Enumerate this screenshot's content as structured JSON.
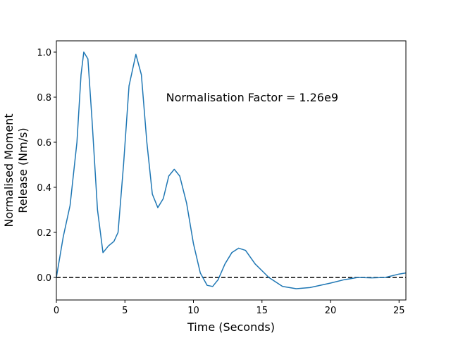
{
  "chart_data": {
    "type": "line",
    "xlabel": "Time (Seconds)",
    "ylabel": [
      "Normalised Moment",
      "Release (Nm/s)"
    ],
    "annotation": {
      "text": "Normalisation Factor = 1.26e9",
      "x": 8,
      "y": 0.8
    },
    "reference_line": 0,
    "x": [
      0,
      0.5,
      1.0,
      1.5,
      1.8,
      2.0,
      2.3,
      2.6,
      3.0,
      3.4,
      3.8,
      4.2,
      4.5,
      4.9,
      5.3,
      5.8,
      6.2,
      6.6,
      7.0,
      7.4,
      7.8,
      8.2,
      8.6,
      9.0,
      9.5,
      10.0,
      10.5,
      11.0,
      11.4,
      11.8,
      12.3,
      12.8,
      13.3,
      13.8,
      14.5,
      15.5,
      16.5,
      17.5,
      18.5,
      20,
      21,
      22,
      23,
      24,
      25,
      25.5
    ],
    "series": [
      {
        "name": "moment",
        "color": "#1f77b4",
        "values": [
          0,
          0.18,
          0.32,
          0.6,
          0.9,
          1.0,
          0.97,
          0.7,
          0.3,
          0.11,
          0.14,
          0.16,
          0.2,
          0.5,
          0.85,
          0.99,
          0.9,
          0.6,
          0.37,
          0.31,
          0.35,
          0.45,
          0.48,
          0.45,
          0.33,
          0.15,
          0.02,
          -0.035,
          -0.04,
          -0.01,
          0.06,
          0.11,
          0.13,
          0.12,
          0.06,
          0.0,
          -0.04,
          -0.05,
          -0.045,
          -0.025,
          -0.01,
          0.0,
          -0.002,
          0.0,
          0.015,
          0.02
        ]
      }
    ],
    "xlim": [
      0,
      25.5
    ],
    "ylim": [
      -0.1,
      1.05
    ],
    "xticks": [
      0,
      5,
      10,
      15,
      20,
      25
    ],
    "yticks": [
      {
        "value": 0,
        "label": "0.0"
      },
      0.2,
      0.4,
      0.6,
      0.8,
      {
        "value": 1,
        "label": "1.0"
      }
    ]
  }
}
